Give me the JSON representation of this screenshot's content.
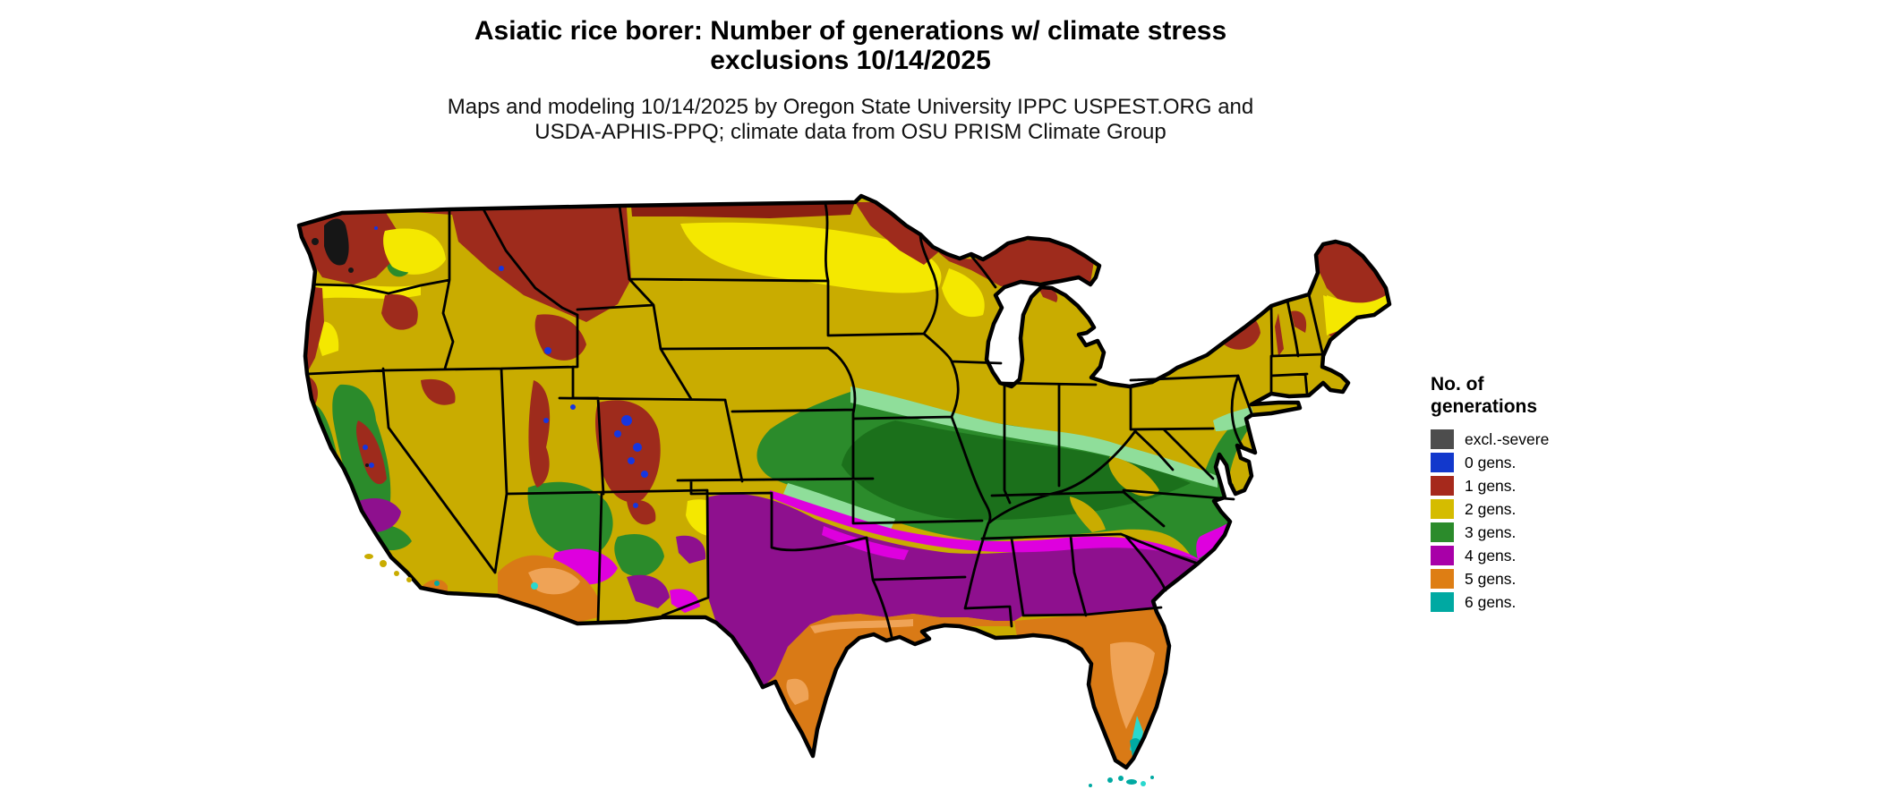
{
  "title": {
    "line1": "Asiatic rice borer: Number of generations w/ climate stress",
    "line2": "exclusions 10/14/2025"
  },
  "subtitle": {
    "line1": "Maps and modeling 10/14/2025 by Oregon State University IPPC USPEST.ORG and",
    "line2": "USDA-APHIS-PPQ; climate data from OSU PRISM Climate Group"
  },
  "legend": {
    "title_line1": "No. of",
    "title_line2": "generations",
    "items": [
      {
        "label": "excl.-severe",
        "color": "#4D4D4D"
      },
      {
        "label": "0 gens.",
        "color": "#1238CC"
      },
      {
        "label": "1 gens.",
        "color": "#A6291C"
      },
      {
        "label": "2 gens.",
        "color": "#D5BC00"
      },
      {
        "label": "3 gens.",
        "color": "#2B8B2B"
      },
      {
        "label": "4 gens.",
        "color": "#A800A8"
      },
      {
        "label": "5 gens.",
        "color": "#DE7E14"
      },
      {
        "label": "6 gens.",
        "color": "#00A9A2"
      }
    ]
  },
  "map": {
    "shades": {
      "gold": "#C9AC00",
      "bright_yellow": "#F4E800",
      "light_green": "#8FDE9A",
      "green": "#2B8B2B",
      "dark_green": "#1B701B",
      "bright_magenta": "#DE00DE",
      "deep_magenta": "#8E108E",
      "orange": "#D97A16",
      "light_orange": "#EFA356",
      "teal": "#00A9A2",
      "bright_cyan": "#2AD8CE",
      "dark_red": "#9E2B1C",
      "darker_red": "#8A2012",
      "blue_speck": "#1636E0",
      "near_black": "#161616",
      "border_black": "#000000"
    }
  }
}
